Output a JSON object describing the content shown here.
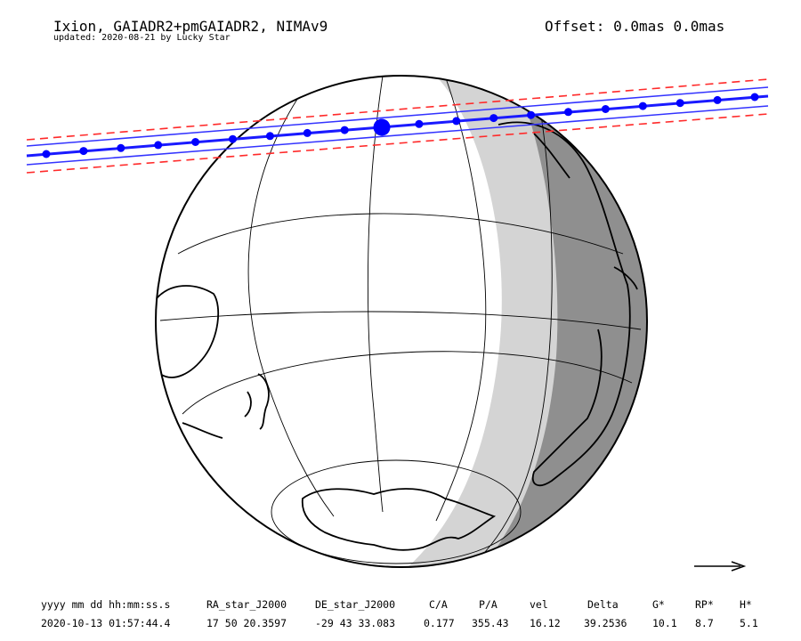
{
  "header": {
    "title": "Ixion, GAIADR2+pmGAIADR2, NIMAv9",
    "subtitle": "updated: 2020-08-21 by Lucky Star",
    "offset": "Offset: 0.0mas 0.0mas"
  },
  "colors": {
    "path_center": "#1a1aff",
    "path_limits": "#3333ff",
    "path_error": "#ff2a2a",
    "markers": "#0000ff",
    "twilight": "#d4d4d4",
    "night": "#8f8f8f"
  },
  "map_symbols": {
    "direction_arrow": "arrow-right-icon",
    "closest_approach": "closest-approach-marker"
  },
  "table": {
    "headers": [
      "yyyy mm dd hh:mm:ss.s",
      "RA_star_J2000",
      "DE_star_J2000",
      "C/A",
      "P/A",
      "vel",
      "Delta",
      "G*",
      "RP*",
      "H*"
    ],
    "values": [
      "2020-10-13 01:57:44.4",
      "17 50 20.3597",
      "-29 43 33.083",
      "0.177",
      "355.43",
      "16.12",
      "39.2536",
      "10.1",
      "8.7",
      "5.1"
    ]
  }
}
